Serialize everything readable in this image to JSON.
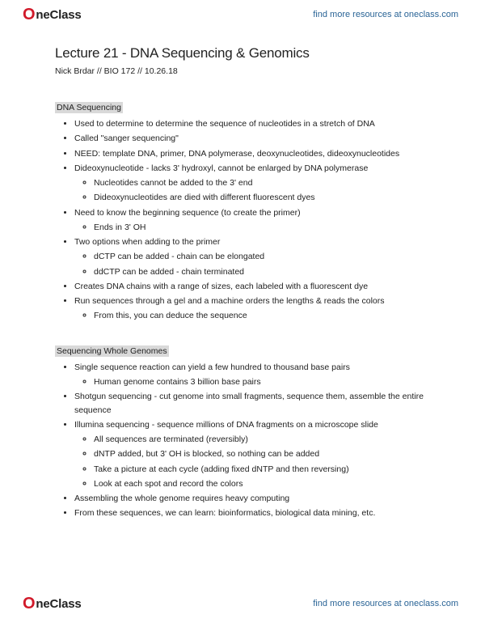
{
  "header": {
    "brand": "neClass",
    "link": "find more resources at oneclass.com"
  },
  "doc": {
    "title": "Lecture 21 - DNA Sequencing & Genomics",
    "byline": "Nick Brdar // BIO 172 // 10.26.18"
  },
  "s1": {
    "heading": "DNA Sequencing",
    "b0": "Used to determine to determine the sequence of nucleotides in a stretch of DNA",
    "b1": "Called \"sanger sequencing\"",
    "b2": "NEED: template DNA, primer, DNA polymerase, deoxynucleotides, dideoxynucleotides",
    "b3": "Dideoxynucleotide - lacks 3' hydroxyl, cannot be enlarged by DNA polymerase",
    "b3a": "Nucleotides cannot be added to the 3' end",
    "b3b": "Dideoxynucleotides are died with different fluorescent dyes",
    "b4": "Need to know the beginning sequence (to create the primer)",
    "b4a": "Ends in 3' OH",
    "b5": "Two options when adding to the primer",
    "b5a": "dCTP can be added - chain can be elongated",
    "b5b": "ddCTP can be added - chain terminated",
    "b6": "Creates DNA chains with a range of sizes, each labeled with a fluorescent dye",
    "b7": "Run sequences through a gel and a machine orders the lengths & reads the colors",
    "b7a": "From this, you can deduce the sequence"
  },
  "s2": {
    "heading": "Sequencing Whole Genomes",
    "b0": "Single sequence reaction can yield a few hundred to thousand base pairs",
    "b0a": "Human genome contains 3 billion base pairs",
    "b1": "Shotgun sequencing - cut genome into small fragments, sequence them, assemble the entire sequence",
    "b2": "Illumina sequencing - sequence millions of DNA fragments on a microscope slide",
    "b2a": "All sequences are terminated (reversibly)",
    "b2b": "dNTP added, but 3' OH is blocked, so nothing can be added",
    "b2c": "Take a picture at each cycle (adding fixed dNTP and then reversing)",
    "b2d": "Look at each spot and record the colors",
    "b3": "Assembling the whole genome requires heavy computing",
    "b4": "From these sequences, we can learn: bioinformatics, biological data mining, etc."
  },
  "footer": {
    "brand": "neClass",
    "link": "find more resources at oneclass.com"
  }
}
